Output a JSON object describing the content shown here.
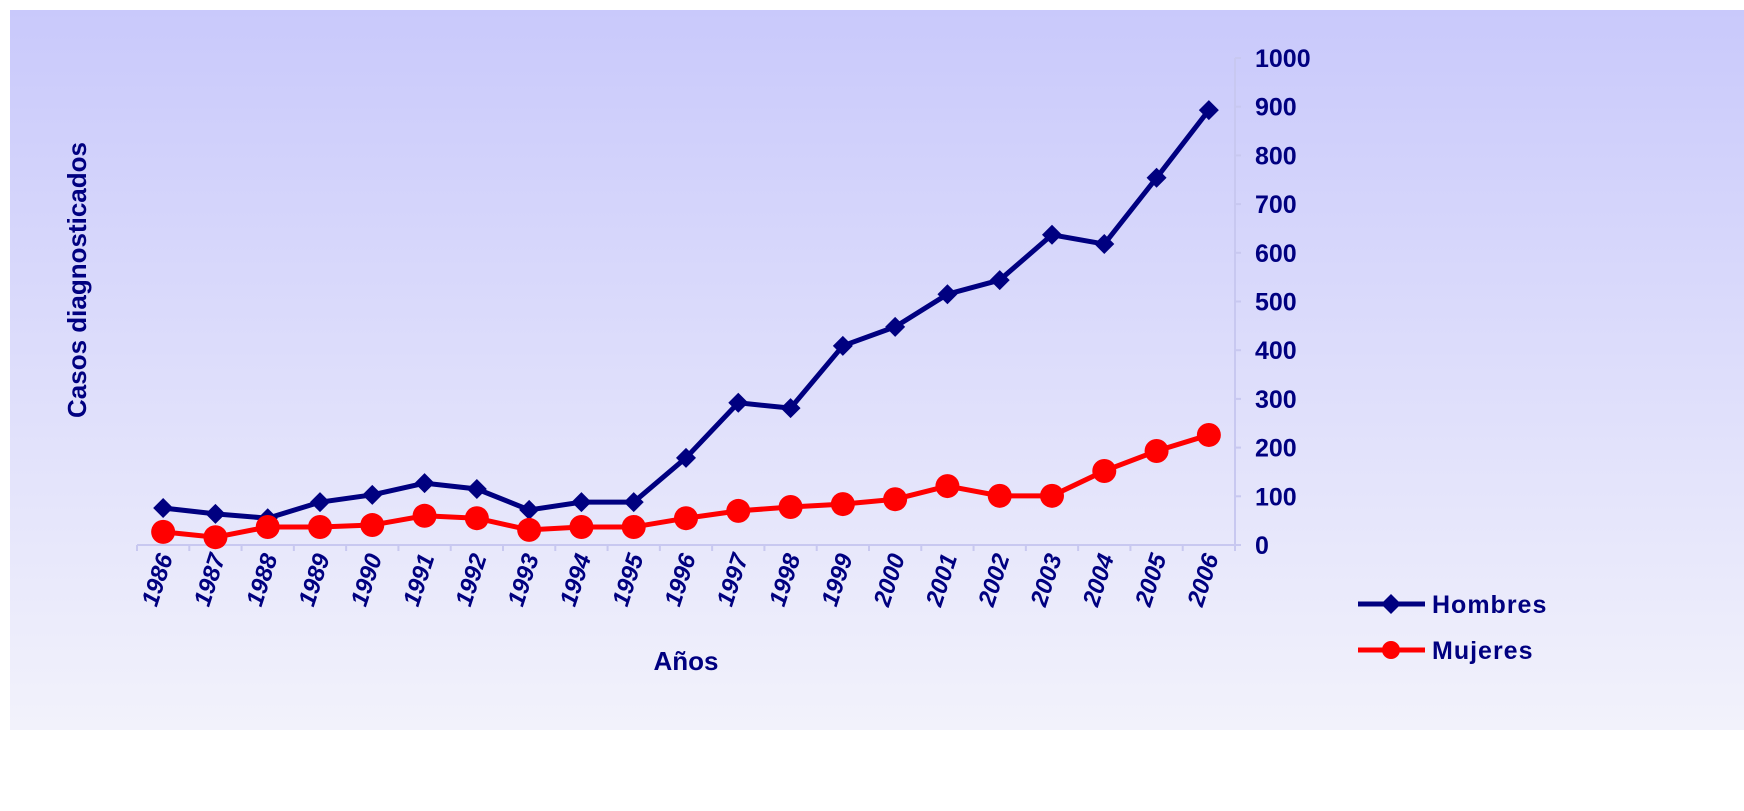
{
  "chart_data": {
    "type": "line",
    "x_label": "Años",
    "y_label": "Casos diagnosticados",
    "categories": [
      "1986",
      "1987",
      "1988",
      "1989",
      "1990",
      "1991",
      "1992",
      "1993",
      "1994",
      "1995",
      "1996",
      "1997",
      "1998",
      "1999",
      "2000",
      "2001",
      "2002",
      "2003",
      "2004",
      "2005",
      "2006"
    ],
    "series": [
      {
        "name": "Hombres",
        "color": "#000080",
        "marker": "diamond",
        "values": [
          76,
          64,
          55,
          88,
          103,
          127,
          115,
          72,
          88,
          88,
          179,
          292,
          281,
          409,
          448,
          515,
          544,
          637,
          618,
          754,
          893
        ]
      },
      {
        "name": "Mujeres",
        "color": "#ff0000",
        "marker": "circle",
        "values": [
          27,
          16,
          37,
          37,
          41,
          60,
          55,
          31,
          37,
          37,
          55,
          70,
          78,
          84,
          94,
          121,
          101,
          101,
          152,
          193,
          226
        ]
      }
    ],
    "ylim": [
      0,
      1000
    ],
    "yticks": [
      0,
      100,
      200,
      300,
      400,
      500,
      600,
      700,
      800,
      900,
      1000
    ],
    "y_axis_side": "right",
    "legend": "right"
  }
}
